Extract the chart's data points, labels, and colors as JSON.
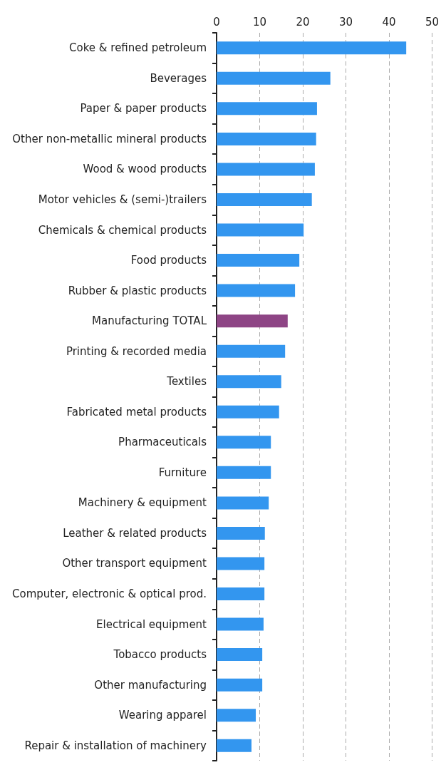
{
  "chart_data": {
    "type": "bar",
    "orientation": "horizontal",
    "categories": [
      "Coke & refined petroleum",
      "Beverages",
      "Paper & paper products",
      "Other non-metallic mineral products",
      "Wood & wood products",
      "Motor vehicles & (semi-)trailers",
      "Chemicals & chemical products",
      "Food products",
      "Rubber & plastic products",
      "Manufacturing TOTAL",
      "Printing & recorded media",
      "Textiles",
      "Fabricated metal products",
      "Pharmaceuticals",
      "Furniture",
      "Machinery & equipment",
      "Leather & related products",
      "Other transport equipment",
      "Computer, electronic & optical prod.",
      "Electrical equipment",
      "Tobacco products",
      "Other manufacturing",
      "Wearing apparel",
      "Repair & installation of machinery"
    ],
    "values": [
      44.0,
      26.4,
      23.3,
      23.1,
      22.8,
      22.1,
      20.2,
      19.2,
      18.2,
      16.5,
      15.9,
      15.0,
      14.5,
      12.6,
      12.6,
      12.1,
      11.2,
      11.1,
      11.1,
      10.9,
      10.6,
      10.6,
      9.1,
      8.1
    ],
    "colors": [
      "#3396ef",
      "#3396ef",
      "#3396ef",
      "#3396ef",
      "#3396ef",
      "#3396ef",
      "#3396ef",
      "#3396ef",
      "#3396ef",
      "#8e4585",
      "#3396ef",
      "#3396ef",
      "#3396ef",
      "#3396ef",
      "#3396ef",
      "#3396ef",
      "#3396ef",
      "#3396ef",
      "#3396ef",
      "#3396ef",
      "#3396ef",
      "#3396ef",
      "#3396ef",
      "#3396ef"
    ],
    "xlim": [
      0,
      50
    ],
    "xticks": [
      0,
      10,
      20,
      30,
      40,
      50
    ],
    "grid": "x"
  }
}
